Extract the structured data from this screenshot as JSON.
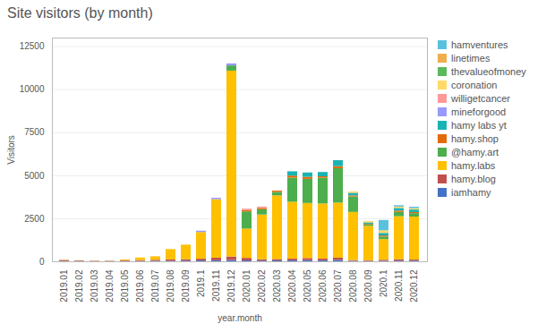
{
  "chart_data": {
    "type": "bar",
    "stacked": true,
    "title": "Site visitors (by month)",
    "xlabel": "year.month",
    "ylabel": "Visitors",
    "categories": [
      "2019.01",
      "2019.02",
      "2019.03",
      "2019.04",
      "2019.05",
      "2019.06",
      "2019.07",
      "2019.08",
      "2019.09",
      "2019.1",
      "2019.11",
      "2019.12",
      "2020.01",
      "2020.02",
      "2020.03",
      "2020.04",
      "2020.05",
      "2020.06",
      "2020.07",
      "2020.08",
      "2020.09",
      "2020.1",
      "2020.11",
      "2020.12"
    ],
    "series": [
      {
        "name": "iamhamy",
        "color": "#4472c4",
        "values": [
          30,
          20,
          10,
          10,
          20,
          20,
          30,
          30,
          40,
          50,
          60,
          80,
          50,
          40,
          50,
          60,
          70,
          60,
          80,
          30,
          20,
          30,
          40,
          40
        ]
      },
      {
        "name": "hamy.blog",
        "color": "#c0504d",
        "values": [
          50,
          30,
          20,
          20,
          40,
          50,
          60,
          80,
          80,
          100,
          150,
          200,
          150,
          80,
          80,
          100,
          120,
          100,
          130,
          40,
          40,
          60,
          80,
          60
        ]
      },
      {
        "name": "hamy.labs",
        "color": "#ffc000",
        "values": [
          20,
          10,
          10,
          10,
          50,
          150,
          200,
          600,
          850,
          1550,
          3400,
          10800,
          1700,
          2600,
          3700,
          3300,
          3200,
          3200,
          3200,
          2800,
          2000,
          1200,
          2500,
          2500
        ]
      },
      {
        "name": "@hamy.art",
        "color": "#4cae4c",
        "values": [
          0,
          0,
          0,
          0,
          0,
          0,
          0,
          0,
          0,
          0,
          0,
          300,
          1000,
          300,
          200,
          1400,
          1400,
          1500,
          2000,
          900,
          80,
          150,
          250,
          200
        ]
      },
      {
        "name": "hamy.shop",
        "color": "#e36c0a",
        "values": [
          0,
          0,
          0,
          0,
          0,
          0,
          0,
          0,
          0,
          0,
          0,
          0,
          80,
          80,
          80,
          120,
          120,
          80,
          120,
          60,
          40,
          60,
          80,
          60
        ]
      },
      {
        "name": "hamy labs yt",
        "color": "#1ab3b3",
        "values": [
          0,
          0,
          0,
          0,
          0,
          0,
          0,
          0,
          0,
          0,
          0,
          0,
          0,
          0,
          0,
          250,
          250,
          250,
          350,
          150,
          80,
          150,
          150,
          150
        ]
      },
      {
        "name": "mineforgood",
        "color": "#9999ff",
        "values": [
          0,
          0,
          0,
          0,
          0,
          0,
          0,
          0,
          0,
          80,
          80,
          120,
          0,
          0,
          0,
          0,
          0,
          0,
          0,
          0,
          0,
          0,
          0,
          0
        ]
      },
      {
        "name": "willigetcancer",
        "color": "#ff9999",
        "values": [
          0,
          0,
          0,
          0,
          0,
          0,
          0,
          0,
          0,
          0,
          0,
          0,
          80,
          80,
          0,
          0,
          0,
          0,
          0,
          0,
          0,
          0,
          0,
          0
        ]
      },
      {
        "name": "coronation",
        "color": "#ffd966",
        "values": [
          0,
          0,
          0,
          0,
          0,
          0,
          0,
          0,
          0,
          0,
          0,
          0,
          0,
          0,
          0,
          0,
          0,
          0,
          0,
          80,
          80,
          150,
          80,
          80
        ]
      },
      {
        "name": "thevalueofmoney",
        "color": "#5cb85c",
        "values": [
          0,
          0,
          0,
          0,
          0,
          0,
          0,
          0,
          0,
          0,
          0,
          0,
          0,
          0,
          0,
          0,
          0,
          0,
          0,
          0,
          0,
          0,
          0,
          0
        ]
      },
      {
        "name": "linetimes",
        "color": "#f0ad4e",
        "values": [
          0,
          0,
          0,
          0,
          0,
          0,
          0,
          0,
          0,
          0,
          0,
          0,
          0,
          0,
          0,
          0,
          0,
          0,
          0,
          0,
          0,
          0,
          0,
          0
        ]
      },
      {
        "name": "hamventures",
        "color": "#5bc0de",
        "values": [
          0,
          0,
          0,
          0,
          0,
          0,
          0,
          0,
          0,
          0,
          0,
          0,
          0,
          0,
          0,
          0,
          0,
          0,
          0,
          0,
          0,
          600,
          80,
          80
        ]
      }
    ],
    "ylim": [
      0,
      13000
    ],
    "yticks": [
      0,
      2500,
      5000,
      7500,
      10000,
      12500
    ],
    "grid": true,
    "legend": "right"
  }
}
